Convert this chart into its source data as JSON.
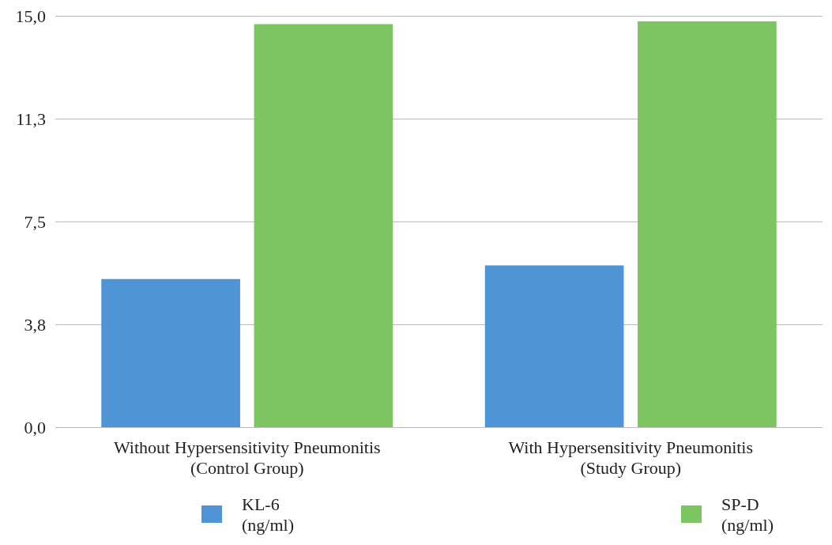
{
  "chart_data": {
    "type": "bar",
    "categories": [
      "Without Hypersensitivity Pneumonitis\n(Control Group)",
      "With Hypersensitivity Pneumonitis\n(Study Group)"
    ],
    "series": [
      {
        "name": "KL-6\n(ng/ml)",
        "color": "#4f94d4",
        "values": [
          5.4,
          5.9
        ]
      },
      {
        "name": "SP-D\n(ng/ml)",
        "color": "#7dc462",
        "values": [
          14.7,
          14.8
        ]
      }
    ],
    "ylim": [
      0,
      15
    ],
    "yticks": [
      {
        "value": 0,
        "label": "0,0"
      },
      {
        "value": 3.75,
        "label": "3,8"
      },
      {
        "value": 7.5,
        "label": "7,5"
      },
      {
        "value": 11.25,
        "label": "11,3"
      },
      {
        "value": 15,
        "label": "15,0"
      }
    ],
    "grid": "y",
    "legend": "bottom"
  }
}
